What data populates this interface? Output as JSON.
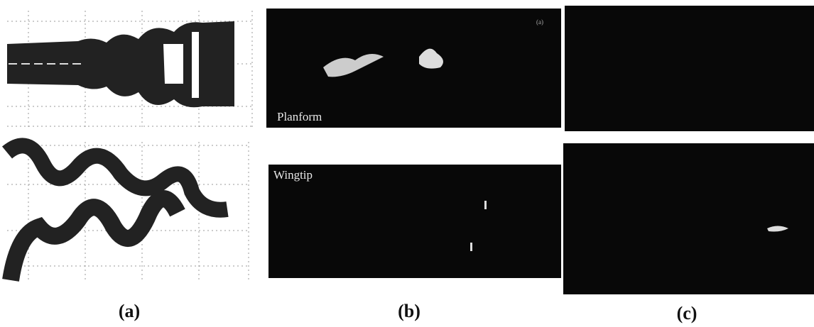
{
  "panels": [
    {
      "label": "(a)"
    },
    {
      "label": "(b)",
      "images": [
        {
          "caption": "Planform",
          "tag": "(a)"
        },
        {
          "caption": "Wingtip"
        }
      ]
    },
    {
      "label": "(c)"
    }
  ]
}
